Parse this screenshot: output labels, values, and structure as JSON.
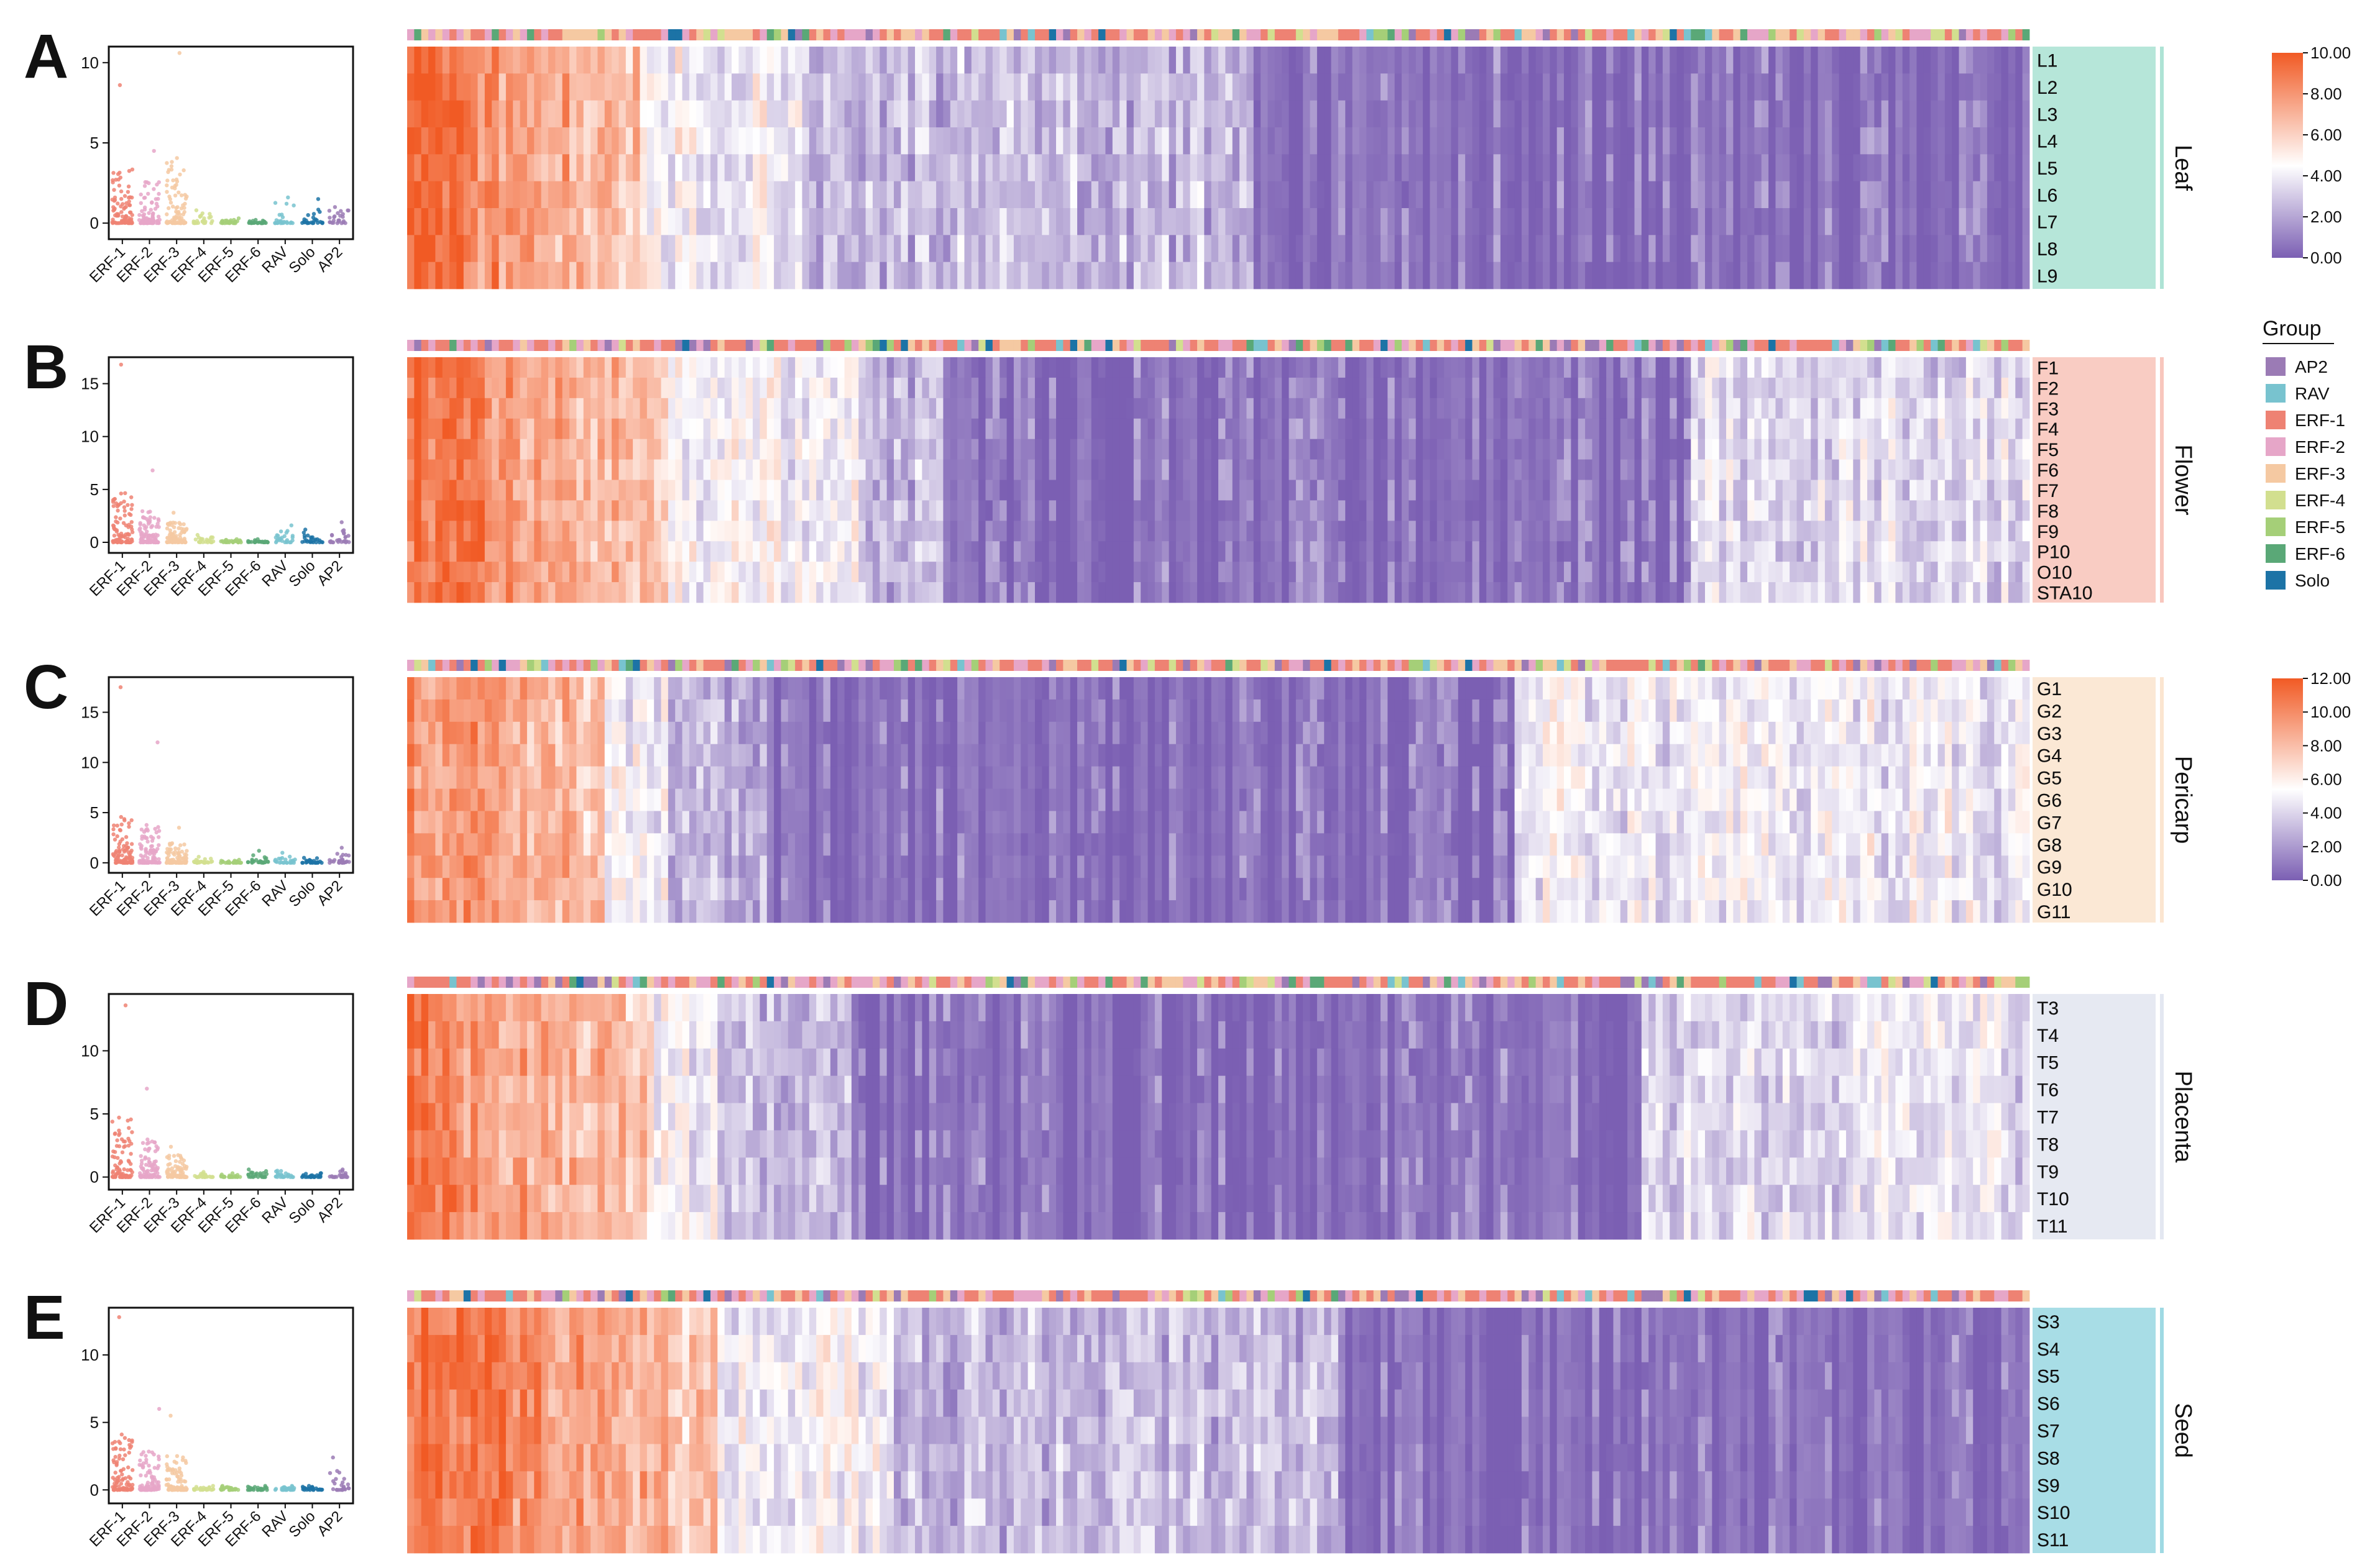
{
  "figure": {
    "colors": {
      "low": "#7b5fb3",
      "mid": "#ffffff",
      "high": "#f15a24"
    }
  },
  "groups": [
    {
      "name": "AP2",
      "color": "#9b7bb5"
    },
    {
      "name": "RAV",
      "color": "#78c3cf"
    },
    {
      "name": "ERF-1",
      "color": "#ee8273"
    },
    {
      "name": "ERF-2",
      "color": "#e6a6c8"
    },
    {
      "name": "ERF-3",
      "color": "#f5c9a2"
    },
    {
      "name": "ERF-4",
      "color": "#d2df8f"
    },
    {
      "name": "ERF-5",
      "color": "#a5cf78"
    },
    {
      "name": "ERF-6",
      "color": "#5aa877"
    },
    {
      "name": "Solo",
      "color": "#1c73a6"
    }
  ],
  "legend": {
    "title": "Group",
    "scale1": {
      "ticks": [
        "10.00",
        "8.00",
        "6.00",
        "4.00",
        "2.00",
        "0.00"
      ]
    },
    "scale2": {
      "ticks": [
        "12.00",
        "10.00",
        "8.00",
        "6.00",
        "4.00",
        "2.00",
        "0.00"
      ]
    }
  },
  "chart_data": [
    {
      "type": "heatmap",
      "panel": "A",
      "tissue": "Leaf",
      "tissue_color": "#aee3d5",
      "rows": [
        "L1",
        "L2",
        "L3",
        "L4",
        "L5",
        "L6",
        "L7",
        "L8",
        "L9"
      ],
      "scale": {
        "min": 0,
        "max": 10
      },
      "profile": {
        "hi": [
          0,
          0.04
        ],
        "warm": [
          0.04,
          0.14
        ],
        "pale": [
          0.14,
          0.24
        ],
        "mid": [
          0.24,
          0.52
        ],
        "tailStart": 1.0,
        "tailLevel": 0.15
      },
      "dot_plot": {
        "type": "scatter",
        "categories": [
          "ERF-1",
          "ERF-2",
          "ERF-3",
          "ERF-4",
          "ERF-5",
          "ERF-6",
          "RAV",
          "Solo",
          "AP2"
        ],
        "yticks": [
          0,
          5,
          10
        ],
        "ylim": [
          -1,
          11
        ],
        "max_values": [
          8.6,
          4.5,
          10.6,
          0.8,
          0.3,
          0.2,
          1.6,
          1.5,
          1.0
        ],
        "spread": [
          2.2,
          1.6,
          2.6,
          0.4,
          0.15,
          0.1,
          0.8,
          0.7,
          0.5
        ]
      }
    },
    {
      "type": "heatmap",
      "panel": "B",
      "tissue": "Flower",
      "tissue_color": "#f8c6bd",
      "rows": [
        "F1",
        "F2",
        "F3",
        "F4",
        "F5",
        "F6",
        "F7",
        "F8",
        "F9",
        "P10",
        "O10",
        "STA10"
      ],
      "scale": {
        "min": 0,
        "max": 10
      },
      "profile": {
        "hi": [
          0,
          0.03
        ],
        "warm": [
          0.03,
          0.16
        ],
        "pale": [
          0.16,
          0.28
        ],
        "mid": [
          0.28,
          0.33
        ],
        "tailStart": 0.79,
        "tailLevel": 0.35
      },
      "dot_plot": {
        "type": "scatter",
        "categories": [
          "ERF-1",
          "ERF-2",
          "ERF-3",
          "ERF-4",
          "ERF-5",
          "ERF-6",
          "RAV",
          "Solo",
          "AP2"
        ],
        "yticks": [
          0,
          5,
          10,
          15
        ],
        "ylim": [
          -1,
          17.5
        ],
        "max_values": [
          16.8,
          6.8,
          2.8,
          0.7,
          0.3,
          0.3,
          1.6,
          1.2,
          1.9
        ],
        "spread": [
          3.0,
          2.0,
          1.2,
          0.3,
          0.15,
          0.15,
          0.7,
          0.6,
          0.8
        ]
      }
    },
    {
      "type": "heatmap",
      "panel": "C",
      "tissue": "Pericarp",
      "tissue_color": "#fbe5d0",
      "rows": [
        "G1",
        "G2",
        "G3",
        "G4",
        "G5",
        "G6",
        "G7",
        "G8",
        "G9",
        "G10",
        "G11"
      ],
      "scale": {
        "min": 0,
        "max": 12
      },
      "profile": {
        "hi": [
          0,
          0.0
        ],
        "warm": [
          0.0,
          0.12
        ],
        "pale": [
          0.12,
          0.16
        ],
        "mid": [
          0.16,
          0.22
        ],
        "tailStart": 0.68,
        "tailLevel": 0.4
      },
      "dot_plot": {
        "type": "scatter",
        "categories": [
          "ERF-1",
          "ERF-2",
          "ERF-3",
          "ERF-4",
          "ERF-5",
          "ERF-6",
          "RAV",
          "Solo",
          "AP2"
        ],
        "yticks": [
          0,
          5,
          10,
          15
        ],
        "ylim": [
          -1,
          18.5
        ],
        "max_values": [
          17.5,
          12.0,
          3.5,
          0.6,
          0.3,
          1.2,
          1.0,
          0.5,
          1.5
        ],
        "spread": [
          3.0,
          2.4,
          1.3,
          0.3,
          0.15,
          0.5,
          0.5,
          0.3,
          0.7
        ]
      }
    },
    {
      "type": "heatmap",
      "panel": "D",
      "tissue": "Placenta",
      "tissue_color": "#e3e7f1",
      "rows": [
        "T3",
        "T4",
        "T5",
        "T6",
        "T7",
        "T8",
        "T9",
        "T10",
        "T11"
      ],
      "scale": {
        "min": 0,
        "max": 12
      },
      "profile": {
        "hi": [
          0,
          0.02
        ],
        "warm": [
          0.02,
          0.15
        ],
        "pale": [
          0.15,
          0.19
        ],
        "mid": [
          0.19,
          0.27
        ],
        "tailStart": 0.76,
        "tailLevel": 0.35
      },
      "dot_plot": {
        "type": "scatter",
        "categories": [
          "ERF-1",
          "ERF-2",
          "ERF-3",
          "ERF-4",
          "ERF-5",
          "ERF-6",
          "RAV",
          "Solo",
          "AP2"
        ],
        "yticks": [
          0,
          5,
          10
        ],
        "ylim": [
          -1,
          14.5
        ],
        "max_values": [
          13.6,
          7.0,
          2.4,
          0.4,
          0.3,
          0.6,
          0.5,
          0.3,
          0.6
        ],
        "spread": [
          3.0,
          1.9,
          1.1,
          0.2,
          0.15,
          0.3,
          0.3,
          0.2,
          0.3
        ]
      }
    },
    {
      "type": "heatmap",
      "panel": "E",
      "tissue": "Seed",
      "tissue_color": "#9fd9e3",
      "rows": [
        "S3",
        "S4",
        "S5",
        "S6",
        "S7",
        "S8",
        "S9",
        "S10",
        "S11"
      ],
      "scale": {
        "min": 0,
        "max": 12
      },
      "profile": {
        "hi": [
          0.02,
          0.06
        ],
        "warm": [
          0.06,
          0.19
        ],
        "pale": [
          0.19,
          0.3
        ],
        "mid": [
          0.3,
          0.57
        ],
        "tailStart": 1.0,
        "tailLevel": 0.1
      },
      "dot_plot": {
        "type": "scatter",
        "categories": [
          "ERF-1",
          "ERF-2",
          "ERF-3",
          "ERF-4",
          "ERF-5",
          "ERF-6",
          "RAV",
          "Solo",
          "AP2"
        ],
        "yticks": [
          0,
          5,
          10
        ],
        "ylim": [
          -1,
          13.5
        ],
        "max_values": [
          12.8,
          6.0,
          5.5,
          0.3,
          0.3,
          0.3,
          0.3,
          0.3,
          2.4
        ],
        "spread": [
          3.0,
          1.8,
          1.6,
          0.15,
          0.15,
          0.15,
          0.15,
          0.15,
          1.0
        ]
      }
    }
  ]
}
